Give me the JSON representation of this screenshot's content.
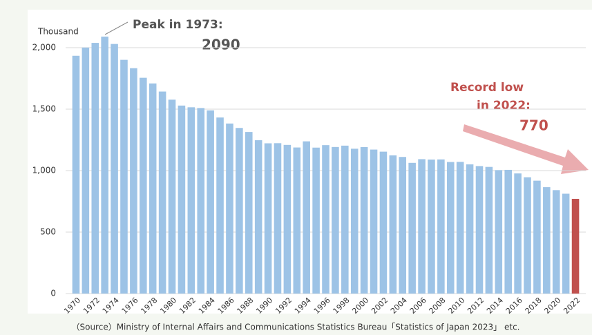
{
  "chart_data": {
    "type": "bar",
    "y_unit": "Thousand",
    "categories": [
      "1970",
      null,
      "1972",
      null,
      "1974",
      null,
      "1976",
      null,
      "1978",
      null,
      "1980",
      null,
      "1982",
      null,
      "1984",
      null,
      "1986",
      null,
      "1988",
      null,
      "1990",
      null,
      "1992",
      null,
      "1994",
      null,
      "1996",
      null,
      "1998",
      null,
      "2000",
      null,
      "2002",
      null,
      "2004",
      null,
      "2006",
      null,
      "2008",
      null,
      "2010",
      null,
      "2012",
      null,
      "2014",
      null,
      "2016",
      null,
      "2018",
      null,
      "2020",
      null,
      "2022"
    ],
    "values": [
      1934,
      2001,
      2039,
      2090,
      2030,
      1901,
      1833,
      1755,
      1709,
      1643,
      1577,
      1529,
      1515,
      1509,
      1490,
      1432,
      1383,
      1347,
      1314,
      1247,
      1222,
      1223,
      1209,
      1188,
      1238,
      1187,
      1207,
      1192,
      1203,
      1178,
      1191,
      1171,
      1154,
      1124,
      1111,
      1063,
      1093,
      1090,
      1091,
      1070,
      1071,
      1051,
      1037,
      1030,
      1004,
      1006,
      977,
      946,
      918,
      865,
      841,
      812,
      770
    ],
    "color": "#9dc3e6",
    "highlight_color": "#c0504d",
    "highlight_index": 52,
    "ylim": [
      0,
      2000
    ],
    "yticks": [
      0,
      500,
      {
        "value": 1000,
        "label": "1,000"
      },
      {
        "value": 1500,
        "label": "1,500"
      },
      {
        "value": 2000,
        "label": "2,000"
      }
    ],
    "grid": true,
    "annotations": {
      "peak_title": "Peak in 1973:",
      "peak_value": "2090",
      "low_title_1": "Record low",
      "low_title_2": "in 2022:",
      "low_value": "770"
    },
    "source": "（Source）Ministry of Internal Affairs and Communications Statistics Bureau「Statistics of Japan 2023」 etc."
  }
}
